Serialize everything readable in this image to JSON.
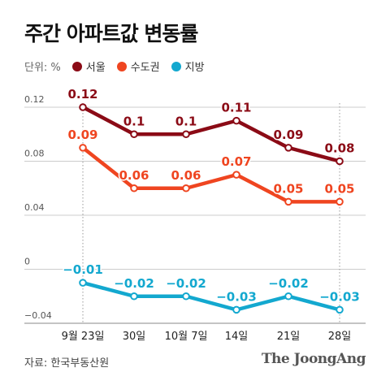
{
  "header": {
    "title": "주간 아파트값 변동률",
    "unit": "단위: %"
  },
  "footer": {
    "source": "자료: 한국부동산원",
    "brand": "The JoongAng"
  },
  "colors": {
    "seoul": "#8b0b16",
    "capital": "#ef4520",
    "regional": "#13a8cf",
    "grid": "#cccccc",
    "axis": "#999999"
  },
  "chart_data": {
    "type": "line",
    "categories": [
      "9월 23일",
      "30일",
      "10월 7일",
      "14일",
      "21일",
      "28일"
    ],
    "y_ticks": [
      "0.12",
      "0.08",
      "0.04",
      "0",
      "-0.04"
    ],
    "ylim": [
      -0.04,
      0.12
    ],
    "grid": true,
    "legend_placement": "top-left",
    "series": [
      {
        "name": "서울",
        "key": "seoul",
        "values": [
          0.12,
          0.1,
          0.1,
          0.11,
          0.09,
          0.08
        ],
        "labels": [
          "0.12",
          "0.1",
          "0.1",
          "0.11",
          "0.09",
          "0.08"
        ]
      },
      {
        "name": "수도권",
        "key": "capital",
        "values": [
          0.09,
          0.06,
          0.06,
          0.07,
          0.05,
          0.05
        ],
        "labels": [
          "0.09",
          "0.06",
          "0.06",
          "0.07",
          "0.05",
          "0.05"
        ]
      },
      {
        "name": "지방",
        "key": "regional",
        "values": [
          -0.01,
          -0.02,
          -0.02,
          -0.03,
          -0.02,
          -0.03
        ],
        "labels": [
          "−0.01",
          "−0.02",
          "−0.02",
          "−0.03",
          "−0.02",
          "−0.03"
        ]
      }
    ]
  }
}
